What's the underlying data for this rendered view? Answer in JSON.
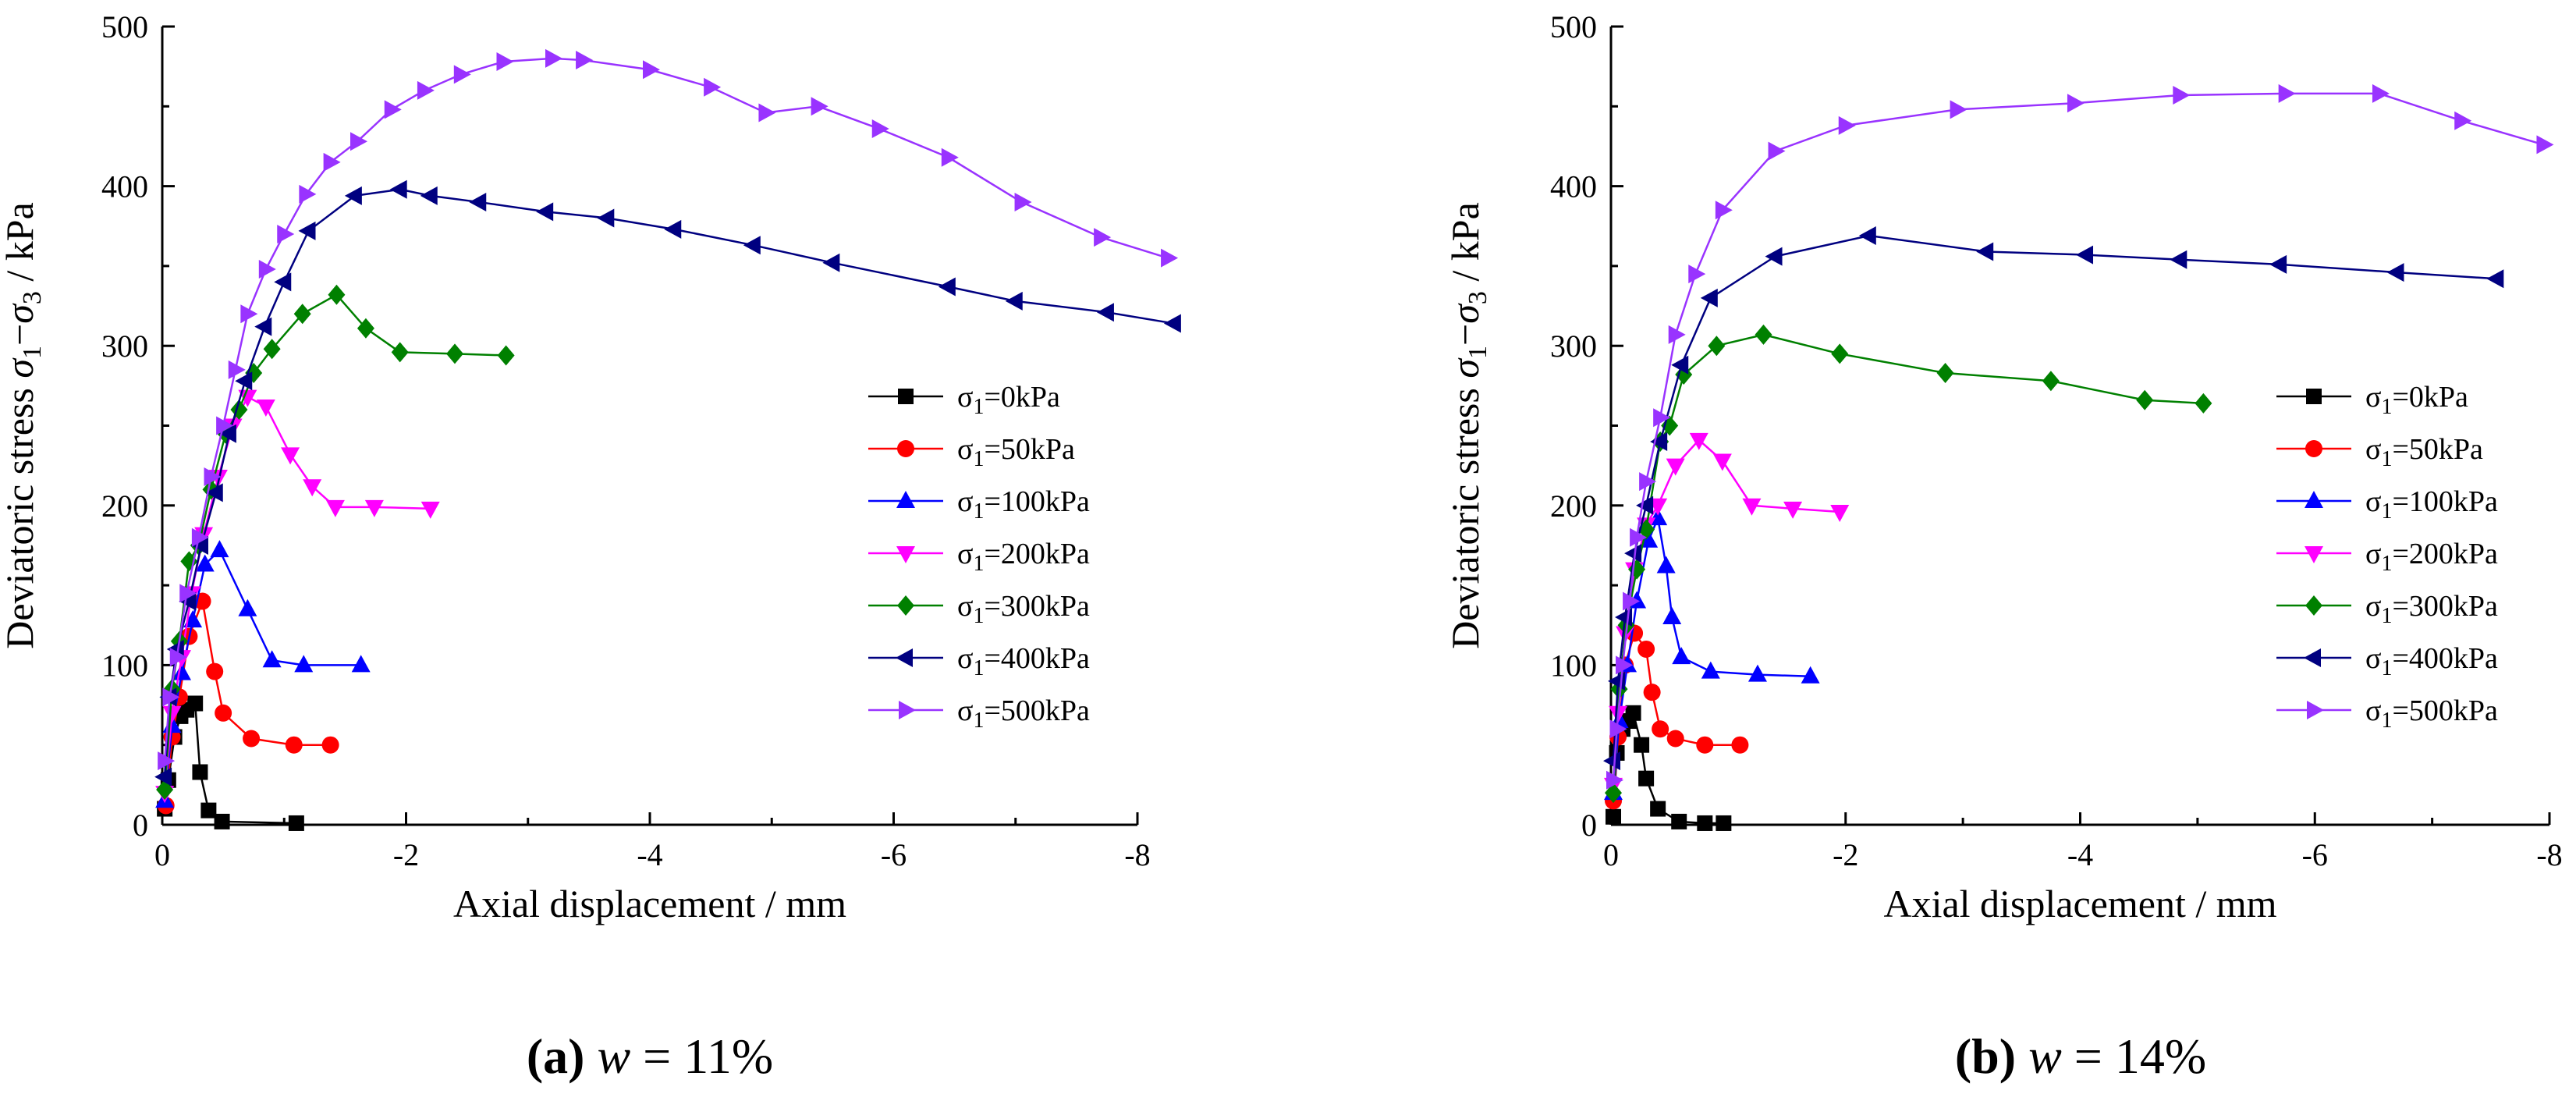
{
  "chart_data": [
    {
      "type": "line",
      "panel": "a",
      "caption_letter": "(a)",
      "caption_var": "w",
      "caption_eq": " = 11%",
      "xlabel": "Axial displacement / mm",
      "ylabel_prefix": "Deviatoric stress ",
      "ylabel_suffix": " / kPa",
      "xlim": [
        0,
        -8
      ],
      "ylim": [
        0,
        500
      ],
      "xticks": [
        0,
        -2,
        -4,
        -6,
        -8
      ],
      "yticks": [
        0,
        100,
        200,
        300,
        400,
        500
      ],
      "legend_position": "right-middle",
      "series": [
        {
          "name": "σ1=0kPa",
          "color": "#000000",
          "marker": "square",
          "x": [
            -0.02,
            -0.05,
            -0.1,
            -0.15,
            -0.2,
            -0.27,
            -0.31,
            -0.38,
            -0.49,
            -1.1
          ],
          "y": [
            10,
            28,
            55,
            68,
            72,
            76,
            33,
            9,
            2,
            1
          ]
        },
        {
          "name": "σ1=50kPa",
          "color": "#ff0000",
          "marker": "circle",
          "x": [
            -0.03,
            -0.08,
            -0.14,
            -0.22,
            -0.33,
            -0.43,
            -0.5,
            -0.73,
            -1.08,
            -1.38
          ],
          "y": [
            12,
            55,
            80,
            118,
            140,
            96,
            70,
            54,
            50,
            50
          ]
        },
        {
          "name": "σ1=100kPa",
          "color": "#0000ff",
          "marker": "triangle-up",
          "x": [
            -0.02,
            -0.08,
            -0.16,
            -0.25,
            -0.35,
            -0.47,
            -0.7,
            -0.9,
            -1.16,
            -1.63
          ],
          "y": [
            15,
            62,
            95,
            128,
            163,
            172,
            135,
            103,
            100,
            100
          ]
        },
        {
          "name": "σ1=200kPa",
          "color": "#ff00ff",
          "marker": "triangle-down",
          "x": [
            -0.02,
            -0.08,
            -0.16,
            -0.24,
            -0.34,
            -0.46,
            -0.58,
            -0.7,
            -0.85,
            -1.05,
            -1.23,
            -1.42,
            -1.74,
            -2.2
          ],
          "y": [
            20,
            70,
            105,
            145,
            182,
            218,
            250,
            268,
            262,
            232,
            212,
            199,
            199,
            198
          ]
        },
        {
          "name": "σ1=300kPa",
          "color": "#008000",
          "marker": "diamond",
          "x": [
            -0.02,
            -0.08,
            -0.14,
            -0.22,
            -0.3,
            -0.4,
            -0.52,
            -0.63,
            -0.75,
            -0.9,
            -1.15,
            -1.43,
            -1.67,
            -1.95,
            -2.4,
            -2.82
          ],
          "y": [
            22,
            85,
            115,
            165,
            175,
            210,
            245,
            260,
            283,
            298,
            320,
            332,
            311,
            296,
            295,
            294
          ]
        },
        {
          "name": "σ1=400kPa",
          "color": "#000080",
          "marker": "triangle-left",
          "x": [
            -0.02,
            -0.06,
            -0.12,
            -0.22,
            -0.32,
            -0.44,
            -0.55,
            -0.68,
            -0.84,
            -1.0,
            -1.2,
            -1.58,
            -1.95,
            -2.2,
            -2.6,
            -3.15,
            -3.65,
            -4.2,
            -4.85,
            -5.5,
            -6.45,
            -7.0,
            -7.75,
            -8.3
          ],
          "y": [
            30,
            80,
            110,
            140,
            175,
            208,
            245,
            278,
            312,
            340,
            372,
            394,
            398,
            394,
            390,
            384,
            380,
            373,
            363,
            352,
            337,
            328,
            321,
            314
          ]
        },
        {
          "name": "σ1=500kPa",
          "color": "#9933ff",
          "marker": "triangle-right",
          "x": [
            -0.02,
            -0.06,
            -0.12,
            -0.2,
            -0.3,
            -0.4,
            -0.5,
            -0.6,
            -0.7,
            -0.85,
            -1.0,
            -1.18,
            -1.38,
            -1.6,
            -1.88,
            -2.15,
            -2.45,
            -2.8,
            -3.2,
            -3.45,
            -4.0,
            -4.5,
            -4.95,
            -5.38,
            -5.88,
            -6.45,
            -7.05,
            -7.7,
            -8.25
          ],
          "y": [
            40,
            80,
            105,
            145,
            180,
            218,
            250,
            285,
            320,
            348,
            370,
            395,
            415,
            428,
            448,
            460,
            470,
            478,
            480,
            479,
            473,
            462,
            446,
            450,
            436,
            418,
            390,
            368,
            355
          ]
        }
      ]
    },
    {
      "type": "line",
      "panel": "b",
      "caption_letter": "(b)",
      "caption_var": "w",
      "caption_eq": " = 14%",
      "xlabel": "Axial displacement / mm",
      "ylabel_prefix": "Deviatoric stress ",
      "ylabel_suffix": " / kPa",
      "xlim": [
        0,
        -8
      ],
      "ylim": [
        0,
        500
      ],
      "xticks": [
        0,
        -2,
        -4,
        -6,
        -8
      ],
      "yticks": [
        0,
        100,
        200,
        300,
        400,
        500
      ],
      "legend_position": "right-middle",
      "series": [
        {
          "name": "σ1=0kPa",
          "color": "#000000",
          "marker": "square",
          "x": [
            -0.02,
            -0.05,
            -0.1,
            -0.15,
            -0.19,
            -0.26,
            -0.3,
            -0.4,
            -0.58,
            -0.8,
            -0.96
          ],
          "y": [
            5,
            45,
            60,
            65,
            70,
            50,
            29,
            10,
            2,
            1,
            1
          ]
        },
        {
          "name": "σ1=50kPa",
          "color": "#ff0000",
          "marker": "circle",
          "x": [
            -0.02,
            -0.06,
            -0.12,
            -0.2,
            -0.3,
            -0.35,
            -0.42,
            -0.55,
            -0.8,
            -1.1
          ],
          "y": [
            15,
            55,
            100,
            120,
            110,
            83,
            60,
            54,
            50,
            50
          ]
        },
        {
          "name": "σ1=100kPa",
          "color": "#0000ff",
          "marker": "triangle-up",
          "x": [
            -0.02,
            -0.07,
            -0.14,
            -0.22,
            -0.32,
            -0.4,
            -0.47,
            -0.52,
            -0.6,
            -0.85,
            -1.25,
            -1.7
          ],
          "y": [
            20,
            65,
            100,
            140,
            178,
            192,
            162,
            130,
            105,
            96,
            94,
            93
          ]
        },
        {
          "name": "σ1=200kPa",
          "color": "#ff00ff",
          "marker": "triangle-down",
          "x": [
            -0.02,
            -0.06,
            -0.12,
            -0.2,
            -0.3,
            -0.4,
            -0.55,
            -0.75,
            -0.95,
            -1.2,
            -1.55,
            -1.95
          ],
          "y": [
            25,
            70,
            120,
            160,
            188,
            200,
            225,
            241,
            228,
            200,
            198,
            196
          ]
        },
        {
          "name": "σ1=300kPa",
          "color": "#008000",
          "marker": "diamond",
          "x": [
            -0.02,
            -0.07,
            -0.13,
            -0.22,
            -0.3,
            -0.42,
            -0.5,
            -0.62,
            -0.9,
            -1.3,
            -1.95,
            -2.85,
            -3.75,
            -4.55,
            -5.05
          ],
          "y": [
            20,
            85,
            125,
            160,
            185,
            240,
            250,
            282,
            300,
            307,
            295,
            283,
            278,
            266,
            264
          ]
        },
        {
          "name": "σ1=400kPa",
          "color": "#000080",
          "marker": "triangle-left",
          "x": [
            -0.02,
            -0.06,
            -0.12,
            -0.2,
            -0.3,
            -0.42,
            -0.6,
            -0.85,
            -1.4,
            -2.2,
            -3.2,
            -4.05,
            -4.85,
            -5.7,
            -6.7,
            -7.55
          ],
          "y": [
            40,
            90,
            130,
            170,
            200,
            240,
            288,
            330,
            356,
            369,
            359,
            357,
            354,
            351,
            346,
            342
          ]
        },
        {
          "name": "σ1=500kPa",
          "color": "#9933ff",
          "marker": "triangle-right",
          "x": [
            -0.02,
            -0.05,
            -0.1,
            -0.16,
            -0.22,
            -0.3,
            -0.42,
            -0.55,
            -0.72,
            -0.95,
            -1.4,
            -2.0,
            -2.95,
            -3.95,
            -4.85,
            -5.75,
            -6.55,
            -7.25,
            -7.95
          ],
          "y": [
            28,
            60,
            100,
            140,
            180,
            215,
            255,
            307,
            345,
            385,
            422,
            438,
            448,
            452,
            457,
            458,
            458,
            441,
            426
          ]
        }
      ]
    }
  ]
}
